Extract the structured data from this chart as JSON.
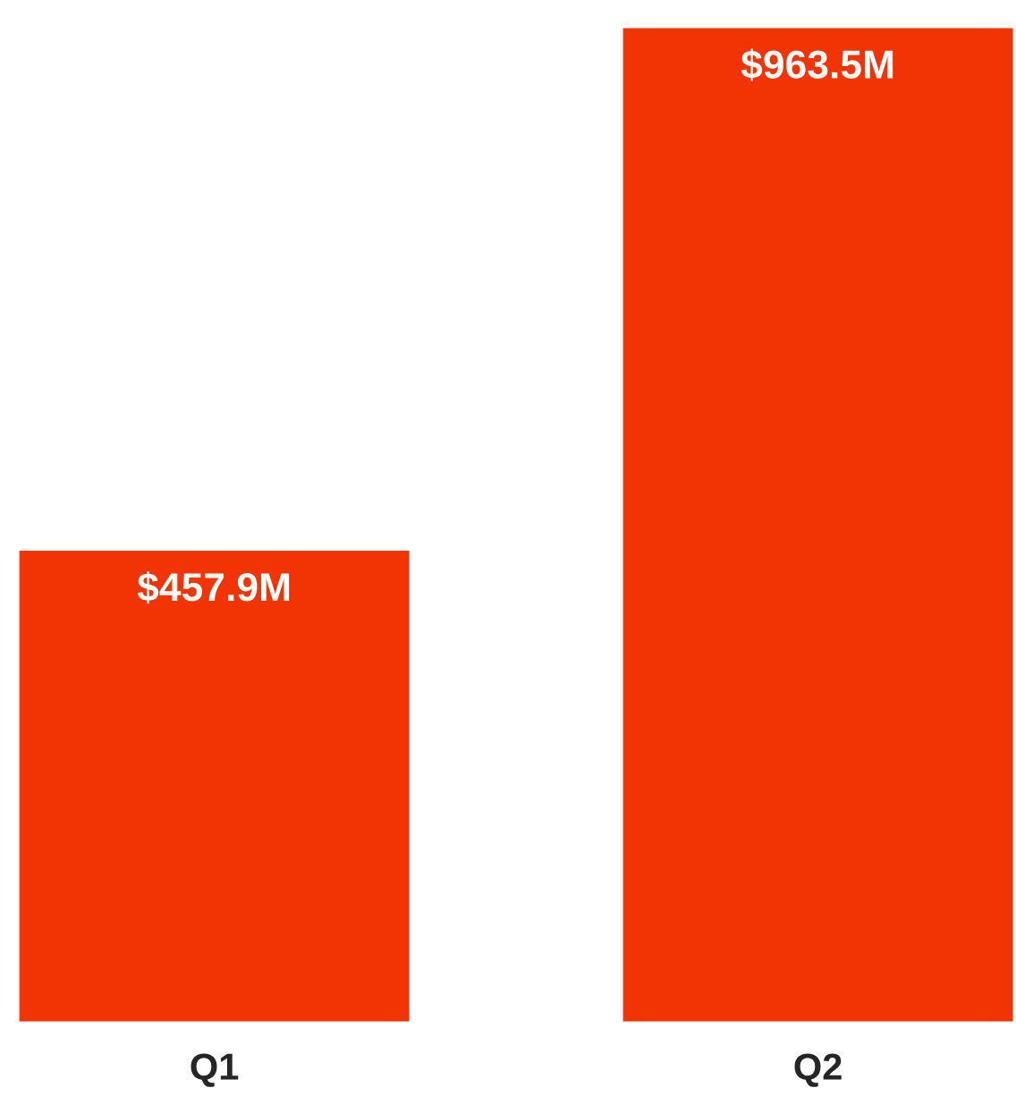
{
  "chart_data": {
    "type": "bar",
    "categories": [
      "Q1",
      "Q2"
    ],
    "values": [
      457.9,
      963.5
    ],
    "color": "#f23405",
    "value_labels": [
      "$457.9M",
      "$963.5M"
    ],
    "legend": false,
    "grid": false
  }
}
